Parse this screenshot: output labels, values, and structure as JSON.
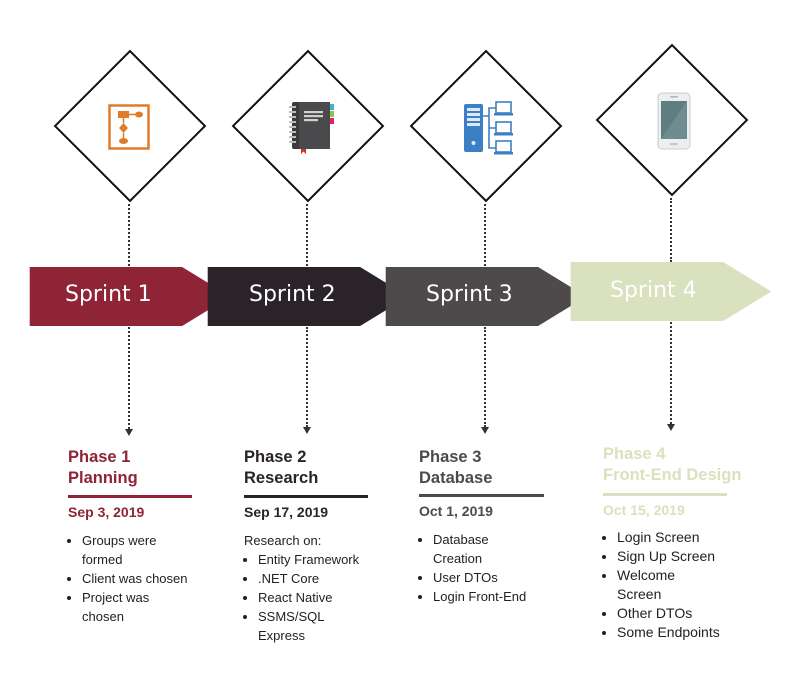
{
  "sprints": [
    {
      "label": "Sprint 1",
      "color": "#8e2436",
      "icon": "flowchart-icon"
    },
    {
      "label": "Sprint 2",
      "color": "#2a2329",
      "icon": "notebook-icon"
    },
    {
      "label": "Sprint 3",
      "color": "#4e4a4b",
      "icon": "server-network-icon"
    },
    {
      "label": "Sprint 4",
      "color": "#d9e1be",
      "icon": "smartphone-icon"
    }
  ],
  "phases": [
    {
      "title_line1": "Phase 1",
      "title_line2": "Planning",
      "date": "Sep 3, 2019",
      "color": "#8e2436",
      "intro": "",
      "items": [
        "Groups were formed",
        "Client was chosen",
        "Project was chosen"
      ]
    },
    {
      "title_line1": "Phase 2",
      "title_line2": "Research",
      "date": "Sep 17, 2019",
      "color": "#2a2329",
      "intro": "Research on:",
      "items": [
        "Entity Framework",
        ".NET Core",
        "React Native",
        "SSMS/SQL Express"
      ]
    },
    {
      "title_line1": "Phase 3",
      "title_line2": "Database",
      "date": "Oct 1, 2019",
      "color": "#4e4a4b",
      "intro": "",
      "items": [
        "Database Creation",
        "User DTOs",
        "Login Front-End"
      ]
    },
    {
      "title_line1": "Phase 4",
      "title_line2": "Front-End Design",
      "date": "Oct 15, 2019",
      "color": "#d9e1be",
      "intro": "",
      "items": [
        "Login Screen",
        "Sign Up Screen",
        "Welcome Screen",
        "Other DTOs",
        "Some Endpoints"
      ]
    }
  ]
}
